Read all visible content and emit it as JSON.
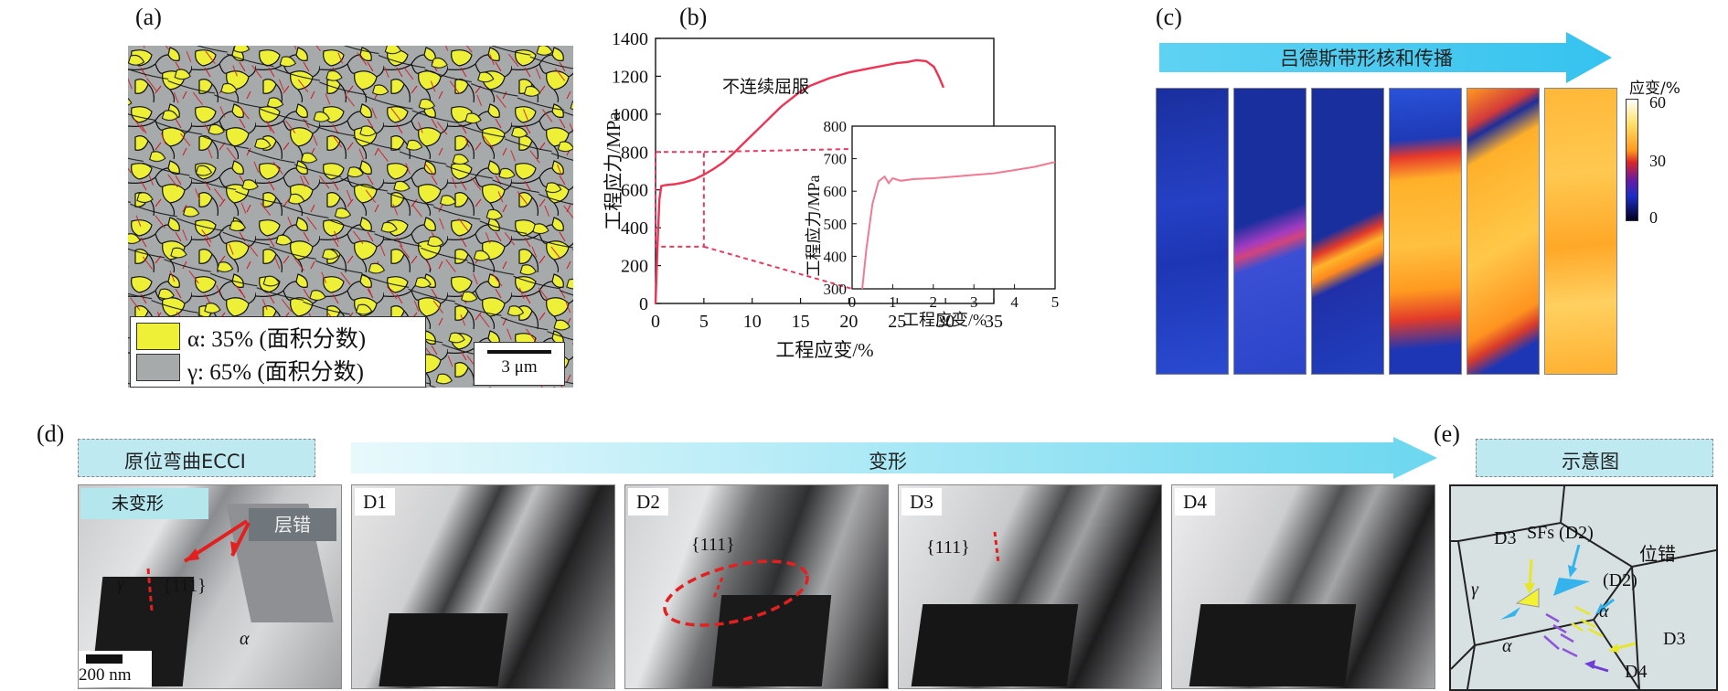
{
  "panels": {
    "a": {
      "label": "(a)",
      "legend": [
        {
          "text": "α: 35% (面积分数)",
          "color": "#eef037"
        },
        {
          "text": "γ: 65% (面积分数)",
          "color": "#a7aaab"
        }
      ],
      "scalebar": "3 μm"
    },
    "b": {
      "label": "(b)",
      "annotation": "不连续屈服",
      "inset_ylabel": "工程应力/MPa",
      "inset_xlabel": "工程应变/%"
    },
    "c": {
      "label": "(c)",
      "arrow_text": "吕德斯带形核和传播",
      "colorbar_title": "应变/%",
      "colorbar_ticks": [
        "60",
        "30",
        "0"
      ]
    },
    "d": {
      "label": "(d)",
      "header_left": "原位弯曲ECCI",
      "header_arrow": "变形",
      "undeformed_tag": "未变形",
      "sf_tag": "层错",
      "frames": [
        "D1",
        "D2",
        "D3",
        "D4"
      ],
      "plane_label": "{111}",
      "gamma": "γ",
      "alpha": "α",
      "scalebar": "200 nm"
    },
    "e": {
      "label": "(e)",
      "header": "示意图",
      "labels": {
        "d3_top": "D3",
        "sfs": "SFs (D2)",
        "dislocation": "位错",
        "d2": "(D2)",
        "gamma": "γ",
        "alpha1": "α",
        "alpha2": "α",
        "d3_right": "D3",
        "d4": "D4"
      }
    }
  },
  "chart_data": {
    "type": "line",
    "xlabel": "工程应变/%",
    "ylabel": "工程应力/MPa",
    "xlim": [
      0,
      35
    ],
    "ylim": [
      0,
      1400
    ],
    "xticks": [
      0,
      5,
      10,
      15,
      20,
      25,
      30,
      35
    ],
    "yticks": [
      0,
      200,
      400,
      600,
      800,
      1000,
      1200,
      1400
    ],
    "series": [
      {
        "color": "#ee3355",
        "x": [
          0,
          0.2,
          0.4,
          0.6,
          1,
          2,
          3,
          4,
          5,
          6,
          7,
          8,
          9,
          10,
          11,
          12,
          13,
          14,
          15,
          16,
          17,
          18,
          19,
          20,
          21,
          22,
          23,
          24,
          25,
          26,
          27,
          28,
          28.8,
          29.3,
          29.8
        ],
        "y": [
          0,
          300,
          550,
          620,
          625,
          630,
          640,
          655,
          680,
          710,
          745,
          790,
          840,
          890,
          940,
          990,
          1040,
          1080,
          1120,
          1150,
          1170,
          1190,
          1205,
          1220,
          1230,
          1240,
          1250,
          1260,
          1270,
          1275,
          1285,
          1280,
          1250,
          1200,
          1140
        ]
      }
    ],
    "inset": {
      "xlim": [
        0,
        5
      ],
      "ylim": [
        300,
        800
      ],
      "xticks": [
        0,
        1,
        2,
        3,
        4,
        5
      ],
      "yticks": [
        300,
        400,
        500,
        600,
        700,
        800
      ],
      "series": [
        {
          "color": "#f07a92",
          "x": [
            0.25,
            0.35,
            0.5,
            0.65,
            0.8,
            0.9,
            1.0,
            1.2,
            1.5,
            2,
            2.5,
            3,
            3.5,
            4,
            4.5,
            5
          ],
          "y": [
            300,
            420,
            560,
            630,
            645,
            625,
            640,
            632,
            637,
            640,
            645,
            650,
            655,
            665,
            675,
            690
          ]
        }
      ]
    }
  }
}
